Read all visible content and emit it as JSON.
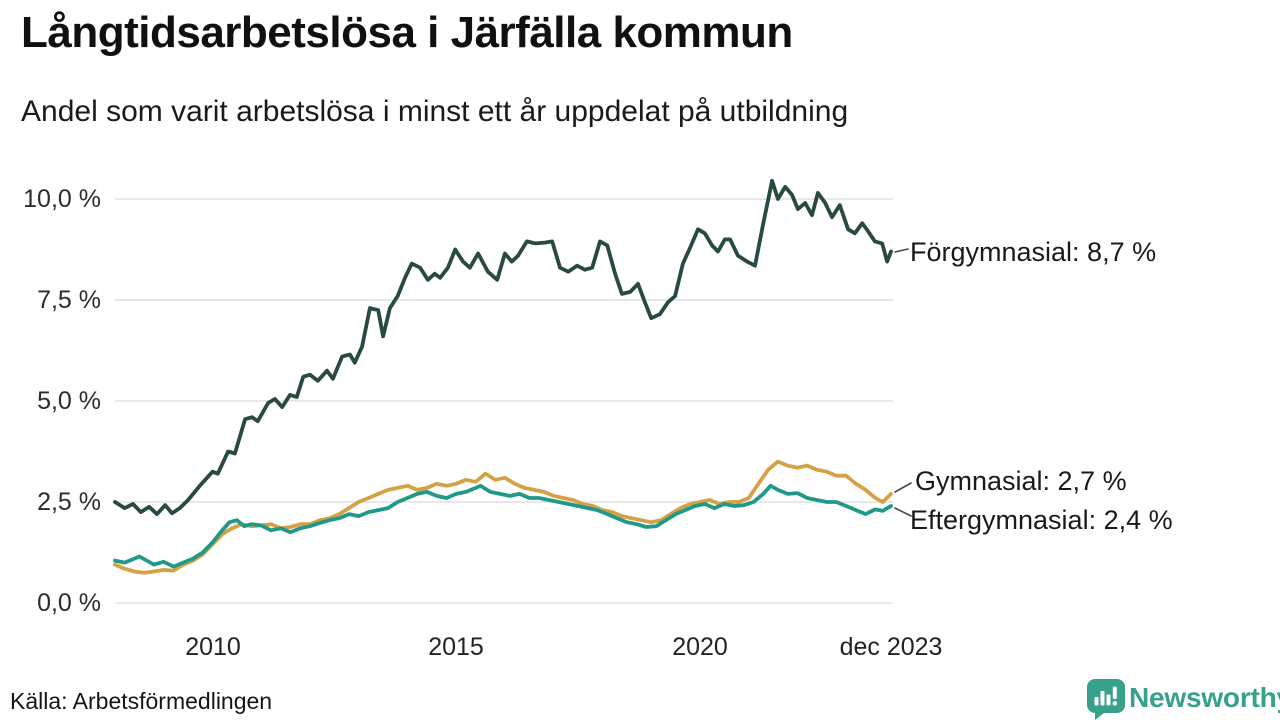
{
  "header": {
    "title": "Långtidsarbetslösa i Järfälla kommun",
    "subtitle": "Andel som varit arbetslösa i minst ett år uppdelat på utbildning"
  },
  "chart_data": {
    "type": "line",
    "title": "Långtidsarbetslösa i Järfälla kommun",
    "subtitle": "Andel som varit arbetslösa i minst ett år uppdelat på utbildning",
    "unit": "%",
    "grid": true,
    "legend_position": "right-end-labels",
    "x_axis": {
      "ticks": [
        {
          "label": "2010",
          "year": 2010
        },
        {
          "label": "2015",
          "year": 2015
        },
        {
          "label": "2020",
          "year": 2020
        },
        {
          "label": "dec 2023",
          "year": 2023.92
        }
      ],
      "range": [
        2008.0,
        2023.92
      ]
    },
    "y_axis": {
      "ticks": [
        "10,0 %",
        "7,5 %",
        "5,0 %",
        "2,5 %",
        "0,0 %"
      ],
      "values": [
        10,
        7.5,
        5,
        2.5,
        0
      ],
      "range": [
        0,
        11
      ]
    },
    "series": [
      {
        "name": "Förgymnasial",
        "end_label": "Förgymnasial: 8,7 %",
        "end_value": 8.7,
        "color": "#294a41",
        "points": [
          [
            2008.0,
            2.5
          ],
          [
            2008.2,
            2.35
          ],
          [
            2008.37,
            2.45
          ],
          [
            2008.53,
            2.25
          ],
          [
            2008.7,
            2.38
          ],
          [
            2008.86,
            2.2
          ],
          [
            2009.03,
            2.42
          ],
          [
            2009.17,
            2.22
          ],
          [
            2009.33,
            2.35
          ],
          [
            2009.5,
            2.55
          ],
          [
            2009.74,
            2.9
          ],
          [
            2010.0,
            3.25
          ],
          [
            2010.11,
            3.2
          ],
          [
            2010.32,
            3.75
          ],
          [
            2010.46,
            3.7
          ],
          [
            2010.67,
            4.55
          ],
          [
            2010.81,
            4.6
          ],
          [
            2010.93,
            4.5
          ],
          [
            2011.14,
            4.95
          ],
          [
            2011.28,
            5.05
          ],
          [
            2011.43,
            4.85
          ],
          [
            2011.59,
            5.15
          ],
          [
            2011.73,
            5.1
          ],
          [
            2011.86,
            5.6
          ],
          [
            2012.0,
            5.65
          ],
          [
            2012.16,
            5.5
          ],
          [
            2012.35,
            5.75
          ],
          [
            2012.47,
            5.55
          ],
          [
            2012.66,
            6.1
          ],
          [
            2012.82,
            6.15
          ],
          [
            2012.92,
            5.95
          ],
          [
            2013.07,
            6.35
          ],
          [
            2013.23,
            7.3
          ],
          [
            2013.4,
            7.25
          ],
          [
            2013.5,
            6.6
          ],
          [
            2013.64,
            7.3
          ],
          [
            2013.8,
            7.6
          ],
          [
            2013.95,
            8.05
          ],
          [
            2014.09,
            8.4
          ],
          [
            2014.26,
            8.3
          ],
          [
            2014.42,
            8.0
          ],
          [
            2014.56,
            8.15
          ],
          [
            2014.67,
            8.05
          ],
          [
            2014.83,
            8.3
          ],
          [
            2014.98,
            8.75
          ],
          [
            2015.14,
            8.45
          ],
          [
            2015.28,
            8.3
          ],
          [
            2015.45,
            8.65
          ],
          [
            2015.65,
            8.2
          ],
          [
            2015.84,
            8.0
          ],
          [
            2016.0,
            8.65
          ],
          [
            2016.14,
            8.45
          ],
          [
            2016.27,
            8.6
          ],
          [
            2016.45,
            8.95
          ],
          [
            2016.62,
            8.9
          ],
          [
            2016.82,
            8.92
          ],
          [
            2016.97,
            8.95
          ],
          [
            2017.13,
            8.3
          ],
          [
            2017.3,
            8.2
          ],
          [
            2017.48,
            8.35
          ],
          [
            2017.64,
            8.25
          ],
          [
            2017.79,
            8.3
          ],
          [
            2017.95,
            8.95
          ],
          [
            2018.1,
            8.85
          ],
          [
            2018.26,
            8.15
          ],
          [
            2018.4,
            7.65
          ],
          [
            2018.57,
            7.7
          ],
          [
            2018.73,
            7.9
          ],
          [
            2018.87,
            7.45
          ],
          [
            2019.0,
            7.05
          ],
          [
            2019.18,
            7.15
          ],
          [
            2019.35,
            7.45
          ],
          [
            2019.49,
            7.6
          ],
          [
            2019.65,
            8.4
          ],
          [
            2019.8,
            8.8
          ],
          [
            2019.96,
            9.25
          ],
          [
            2020.1,
            9.15
          ],
          [
            2020.25,
            8.85
          ],
          [
            2020.37,
            8.7
          ],
          [
            2020.51,
            9.0
          ],
          [
            2020.62,
            9.0
          ],
          [
            2020.78,
            8.6
          ],
          [
            2020.97,
            8.45
          ],
          [
            2021.13,
            8.35
          ],
          [
            2021.3,
            9.4
          ],
          [
            2021.48,
            10.45
          ],
          [
            2021.6,
            10.0
          ],
          [
            2021.75,
            10.3
          ],
          [
            2021.89,
            10.1
          ],
          [
            2022.01,
            9.75
          ],
          [
            2022.16,
            9.9
          ],
          [
            2022.3,
            9.6
          ],
          [
            2022.42,
            10.15
          ],
          [
            2022.57,
            9.9
          ],
          [
            2022.71,
            9.55
          ],
          [
            2022.87,
            9.85
          ],
          [
            2023.04,
            9.25
          ],
          [
            2023.18,
            9.15
          ],
          [
            2023.33,
            9.4
          ],
          [
            2023.45,
            9.2
          ],
          [
            2023.59,
            8.95
          ],
          [
            2023.74,
            8.9
          ],
          [
            2023.84,
            8.45
          ],
          [
            2023.92,
            8.7
          ]
        ]
      },
      {
        "name": "Gymnasial",
        "end_label": "Gymnasial: 2,7 %",
        "end_value": 2.7,
        "color": "#d4a145",
        "points": [
          [
            2008.0,
            0.95
          ],
          [
            2008.2,
            0.85
          ],
          [
            2008.4,
            0.78
          ],
          [
            2008.6,
            0.75
          ],
          [
            2008.8,
            0.78
          ],
          [
            2009.0,
            0.82
          ],
          [
            2009.2,
            0.8
          ],
          [
            2009.4,
            0.95
          ],
          [
            2009.6,
            1.05
          ],
          [
            2009.8,
            1.2
          ],
          [
            2010.0,
            1.45
          ],
          [
            2010.2,
            1.7
          ],
          [
            2010.4,
            1.85
          ],
          [
            2010.6,
            1.95
          ],
          [
            2010.8,
            1.9
          ],
          [
            2011.0,
            1.92
          ],
          [
            2011.2,
            1.95
          ],
          [
            2011.4,
            1.85
          ],
          [
            2011.6,
            1.88
          ],
          [
            2011.8,
            1.95
          ],
          [
            2012.0,
            1.95
          ],
          [
            2012.2,
            2.05
          ],
          [
            2012.4,
            2.1
          ],
          [
            2012.6,
            2.2
          ],
          [
            2012.8,
            2.35
          ],
          [
            2013.0,
            2.5
          ],
          [
            2013.2,
            2.6
          ],
          [
            2013.4,
            2.7
          ],
          [
            2013.6,
            2.8
          ],
          [
            2013.8,
            2.85
          ],
          [
            2014.0,
            2.9
          ],
          [
            2014.2,
            2.8
          ],
          [
            2014.4,
            2.85
          ],
          [
            2014.6,
            2.95
          ],
          [
            2014.8,
            2.9
          ],
          [
            2015.0,
            2.95
          ],
          [
            2015.2,
            3.05
          ],
          [
            2015.4,
            3.0
          ],
          [
            2015.6,
            3.2
          ],
          [
            2015.8,
            3.05
          ],
          [
            2016.0,
            3.1
          ],
          [
            2016.2,
            2.95
          ],
          [
            2016.4,
            2.85
          ],
          [
            2016.6,
            2.8
          ],
          [
            2016.8,
            2.75
          ],
          [
            2017.0,
            2.65
          ],
          [
            2017.2,
            2.6
          ],
          [
            2017.4,
            2.55
          ],
          [
            2017.6,
            2.45
          ],
          [
            2017.8,
            2.4
          ],
          [
            2018.0,
            2.3
          ],
          [
            2018.2,
            2.25
          ],
          [
            2018.4,
            2.15
          ],
          [
            2018.6,
            2.1
          ],
          [
            2018.8,
            2.05
          ],
          [
            2019.0,
            2.0
          ],
          [
            2019.2,
            2.05
          ],
          [
            2019.4,
            2.2
          ],
          [
            2019.6,
            2.35
          ],
          [
            2019.8,
            2.45
          ],
          [
            2020.0,
            2.5
          ],
          [
            2020.2,
            2.55
          ],
          [
            2020.4,
            2.45
          ],
          [
            2020.6,
            2.5
          ],
          [
            2020.8,
            2.5
          ],
          [
            2021.0,
            2.6
          ],
          [
            2021.2,
            2.95
          ],
          [
            2021.4,
            3.3
          ],
          [
            2021.6,
            3.5
          ],
          [
            2021.8,
            3.4
          ],
          [
            2022.0,
            3.35
          ],
          [
            2022.2,
            3.4
          ],
          [
            2022.4,
            3.3
          ],
          [
            2022.6,
            3.25
          ],
          [
            2022.8,
            3.15
          ],
          [
            2023.0,
            3.15
          ],
          [
            2023.2,
            2.95
          ],
          [
            2023.4,
            2.8
          ],
          [
            2023.6,
            2.6
          ],
          [
            2023.75,
            2.5
          ],
          [
            2023.92,
            2.7
          ]
        ]
      },
      {
        "name": "Eftergymnasial",
        "end_label": "Eftergymnasial: 2,4 %",
        "end_value": 2.4,
        "color": "#21998a",
        "points": [
          [
            2008.0,
            1.05
          ],
          [
            2008.2,
            1.0
          ],
          [
            2008.5,
            1.15
          ],
          [
            2008.8,
            0.95
          ],
          [
            2009.0,
            1.02
          ],
          [
            2009.2,
            0.9
          ],
          [
            2009.4,
            1.0
          ],
          [
            2009.6,
            1.1
          ],
          [
            2009.8,
            1.25
          ],
          [
            2010.0,
            1.5
          ],
          [
            2010.2,
            1.8
          ],
          [
            2010.35,
            2.0
          ],
          [
            2010.5,
            2.05
          ],
          [
            2010.65,
            1.9
          ],
          [
            2010.8,
            1.95
          ],
          [
            2011.0,
            1.92
          ],
          [
            2011.2,
            1.8
          ],
          [
            2011.4,
            1.85
          ],
          [
            2011.6,
            1.75
          ],
          [
            2011.8,
            1.85
          ],
          [
            2012.0,
            1.9
          ],
          [
            2012.2,
            1.98
          ],
          [
            2012.4,
            2.05
          ],
          [
            2012.6,
            2.1
          ],
          [
            2012.8,
            2.2
          ],
          [
            2013.0,
            2.15
          ],
          [
            2013.2,
            2.25
          ],
          [
            2013.4,
            2.3
          ],
          [
            2013.6,
            2.35
          ],
          [
            2013.8,
            2.5
          ],
          [
            2014.0,
            2.6
          ],
          [
            2014.2,
            2.7
          ],
          [
            2014.4,
            2.75
          ],
          [
            2014.6,
            2.65
          ],
          [
            2014.8,
            2.6
          ],
          [
            2015.0,
            2.7
          ],
          [
            2015.2,
            2.75
          ],
          [
            2015.4,
            2.85
          ],
          [
            2015.5,
            2.9
          ],
          [
            2015.7,
            2.75
          ],
          [
            2015.9,
            2.7
          ],
          [
            2016.1,
            2.65
          ],
          [
            2016.3,
            2.7
          ],
          [
            2016.5,
            2.6
          ],
          [
            2016.7,
            2.6
          ],
          [
            2016.9,
            2.55
          ],
          [
            2017.1,
            2.5
          ],
          [
            2017.3,
            2.45
          ],
          [
            2017.5,
            2.4
          ],
          [
            2017.7,
            2.35
          ],
          [
            2017.9,
            2.3
          ],
          [
            2018.1,
            2.2
          ],
          [
            2018.3,
            2.1
          ],
          [
            2018.5,
            2.0
          ],
          [
            2018.7,
            1.95
          ],
          [
            2018.9,
            1.88
          ],
          [
            2019.1,
            1.9
          ],
          [
            2019.3,
            2.05
          ],
          [
            2019.5,
            2.2
          ],
          [
            2019.7,
            2.3
          ],
          [
            2019.9,
            2.4
          ],
          [
            2020.1,
            2.45
          ],
          [
            2020.3,
            2.35
          ],
          [
            2020.5,
            2.45
          ],
          [
            2020.7,
            2.4
          ],
          [
            2020.9,
            2.42
          ],
          [
            2021.1,
            2.5
          ],
          [
            2021.3,
            2.7
          ],
          [
            2021.45,
            2.9
          ],
          [
            2021.6,
            2.8
          ],
          [
            2021.8,
            2.7
          ],
          [
            2022.0,
            2.72
          ],
          [
            2022.2,
            2.6
          ],
          [
            2022.4,
            2.55
          ],
          [
            2022.6,
            2.5
          ],
          [
            2022.8,
            2.5
          ],
          [
            2023.0,
            2.4
          ],
          [
            2023.2,
            2.3
          ],
          [
            2023.4,
            2.2
          ],
          [
            2023.6,
            2.32
          ],
          [
            2023.75,
            2.28
          ],
          [
            2023.92,
            2.4
          ]
        ]
      }
    ],
    "colors": {
      "grid": "#e8e8e8",
      "text": "#1a1a1a",
      "brand_teal": "#38a18c"
    }
  },
  "footer": {
    "source": "Källa: Arbetsförmedlingen",
    "brand": "Newsworthy"
  }
}
